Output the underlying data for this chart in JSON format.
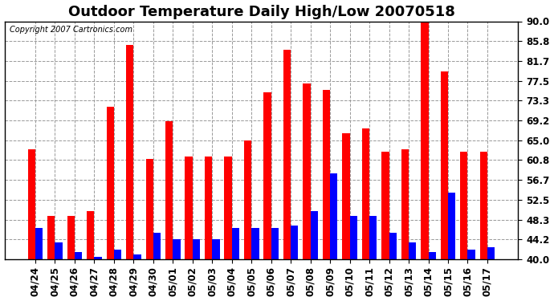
{
  "title": "Outdoor Temperature Daily High/Low 20070518",
  "copyright_text": "Copyright 2007 Cartronics.com",
  "dates": [
    "04/24",
    "04/25",
    "04/26",
    "04/27",
    "04/28",
    "04/29",
    "04/30",
    "05/01",
    "05/02",
    "05/03",
    "05/04",
    "05/05",
    "05/06",
    "05/07",
    "05/08",
    "05/09",
    "05/10",
    "05/11",
    "05/12",
    "05/13",
    "05/14",
    "05/15",
    "05/16",
    "05/17"
  ],
  "high_temps": [
    63.0,
    49.0,
    49.0,
    50.0,
    72.0,
    85.0,
    61.0,
    69.0,
    61.5,
    61.5,
    61.5,
    65.0,
    75.0,
    84.0,
    77.0,
    75.5,
    66.5,
    67.5,
    62.5,
    63.0,
    90.0,
    79.5,
    62.5,
    62.5
  ],
  "low_temps": [
    46.5,
    43.5,
    41.5,
    40.5,
    42.0,
    41.0,
    45.5,
    44.2,
    44.2,
    44.2,
    46.5,
    46.5,
    46.5,
    47.0,
    50.0,
    58.0,
    49.0,
    49.0,
    45.5,
    43.5,
    41.5,
    54.0,
    42.0,
    42.5
  ],
  "high_color": "#ff0000",
  "low_color": "#0000ff",
  "bg_color": "#ffffff",
  "plot_bg_color": "#ffffff",
  "grid_color": "#999999",
  "ylim_min": 40.0,
  "ylim_max": 90.0,
  "yticks": [
    40.0,
    44.2,
    48.3,
    52.5,
    56.7,
    60.8,
    65.0,
    69.2,
    73.3,
    77.5,
    81.7,
    85.8,
    90.0
  ],
  "title_fontsize": 13,
  "tick_fontsize": 8.5,
  "bar_width": 0.38
}
